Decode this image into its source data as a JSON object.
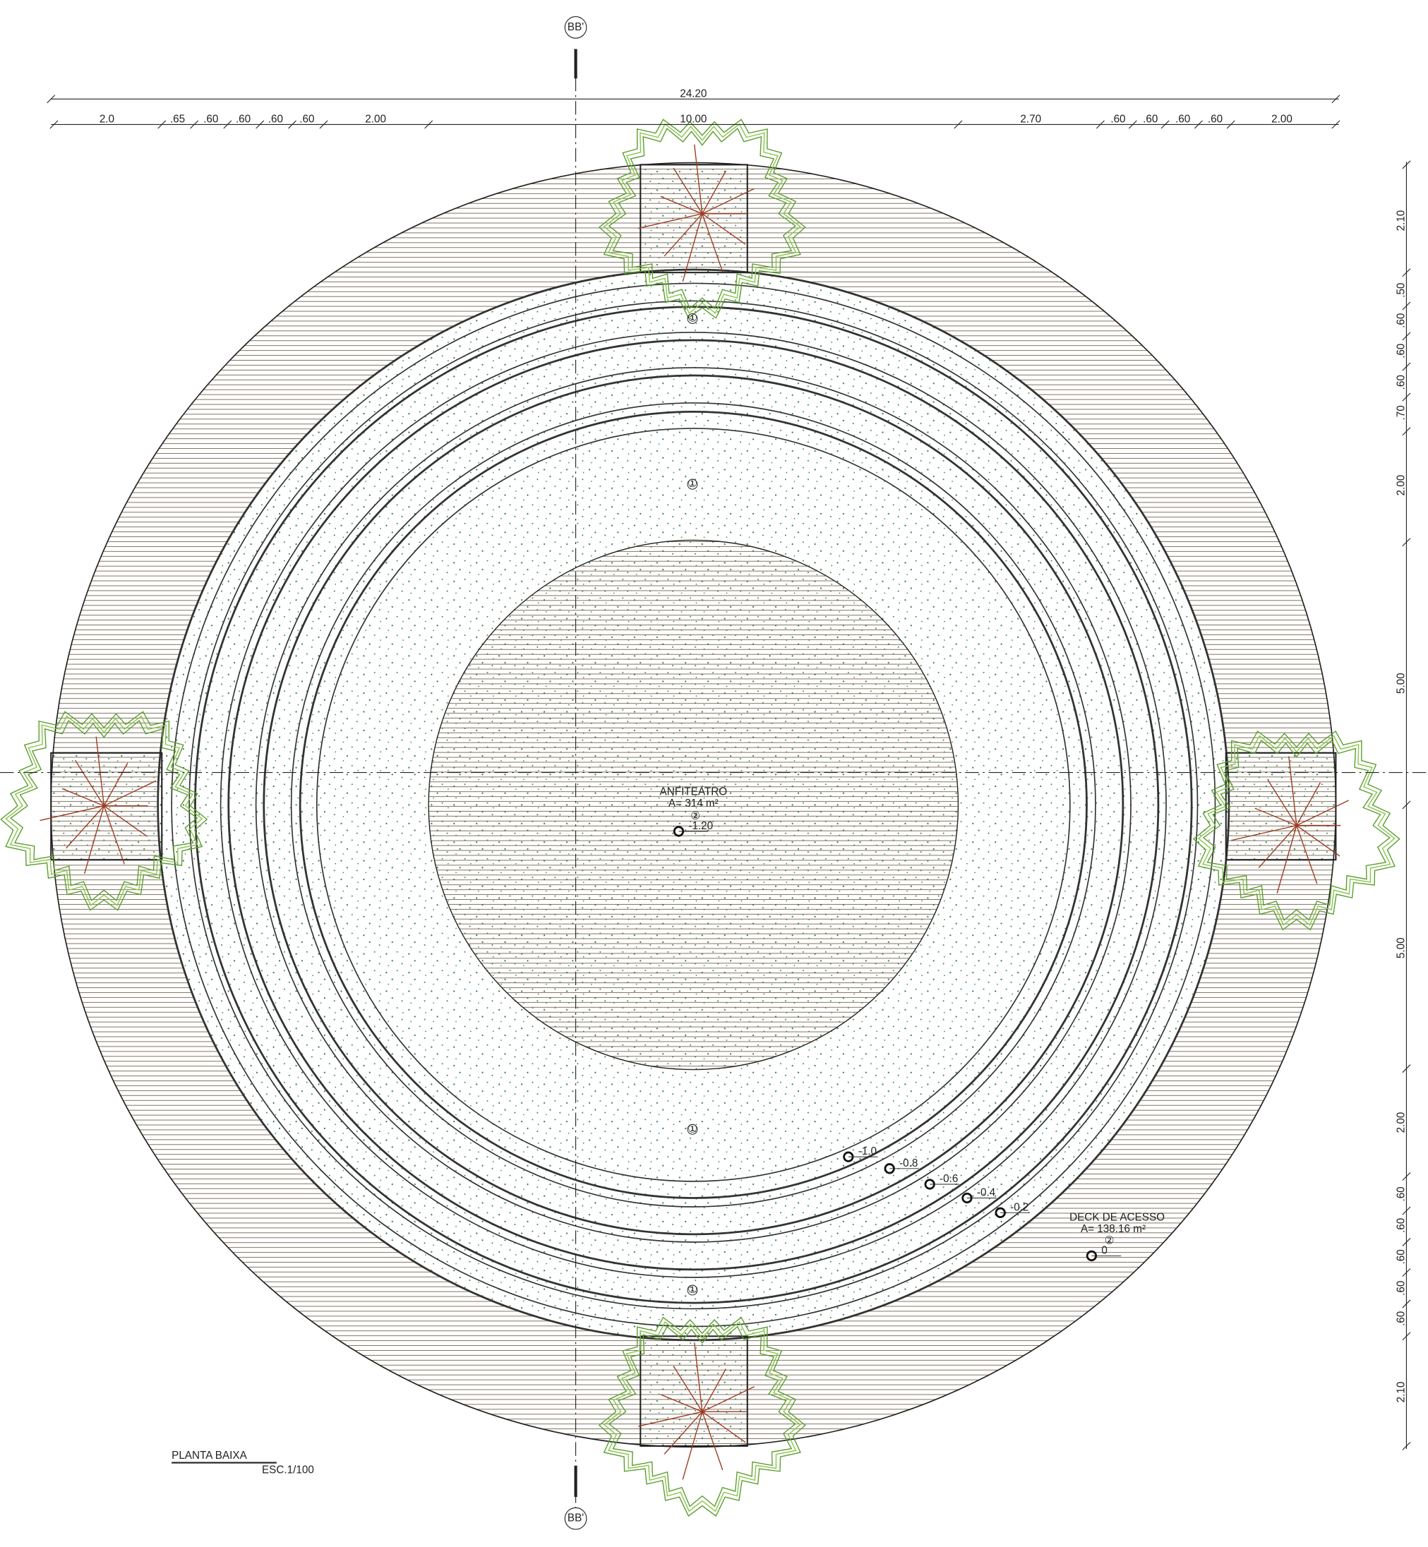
{
  "section_marks": [
    "BB'",
    "BB'"
  ],
  "dimensions": {
    "total": "24.20",
    "top": [
      "2.0",
      ".65",
      ".60",
      ".60",
      ".60",
      ".60",
      "2.00",
      "10.00",
      "2.70",
      ".60",
      ".60",
      ".60",
      ".60",
      "2.00"
    ],
    "right": [
      "2.10",
      ".50",
      ".60",
      ".60",
      ".60",
      ".70",
      "2.00",
      "5.00",
      "5.00",
      "2.00",
      ".60",
      ".60",
      ".60",
      ".60",
      ".60",
      "2.10"
    ]
  },
  "amphitheater": {
    "name": "ANFITEATRO",
    "area": "A= 314 m²",
    "finish": "②",
    "level": "-1.20"
  },
  "deck": {
    "name": "DECK DE ACESSO",
    "area": "A= 138.16 m²",
    "finish": "②",
    "level": "0"
  },
  "ring_finishes": [
    "①",
    "①",
    "①",
    "①"
  ],
  "step_levels": [
    "-1.0",
    "-0.8",
    "-0.6",
    "-0.4",
    "-0.2"
  ],
  "title": "PLANTA BAIXA",
  "scale": "ESC.1/100"
}
